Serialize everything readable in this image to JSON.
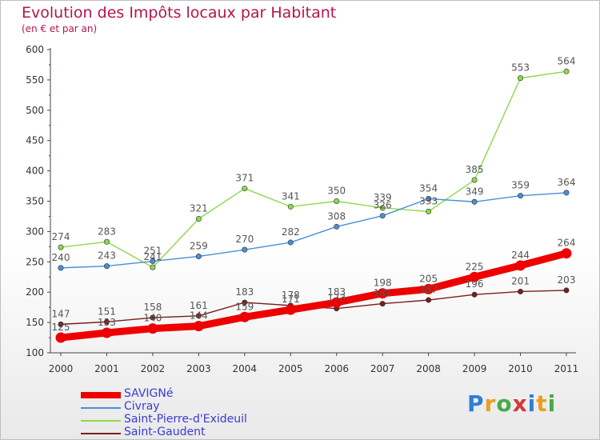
{
  "title": "Evolution des Impôts locaux par Habitant",
  "subtitle": "(en € et par an)",
  "logo": "Proxiti",
  "chart_data": {
    "type": "line",
    "x": [
      "2000",
      "2001",
      "2002",
      "2003",
      "2004",
      "2005",
      "2006",
      "2007",
      "2008",
      "2009",
      "2010",
      "2011"
    ],
    "ylim": [
      100,
      600
    ],
    "yticks": [
      100,
      150,
      200,
      250,
      300,
      350,
      400,
      450,
      500,
      550,
      600
    ],
    "grid": false,
    "legend_position": "bottom-left",
    "series": [
      {
        "name": "SAVIGNé",
        "color": "#ee0000",
        "values": [
          125,
          133,
          140,
          144,
          159,
          171,
          183,
          198,
          205,
          225,
          244,
          264
        ]
      },
      {
        "name": "Civray",
        "color": "#4a8fd4",
        "values": [
          240,
          243,
          251,
          259,
          270,
          282,
          308,
          326,
          354,
          349,
          359,
          364
        ]
      },
      {
        "name": "Saint-Pierre-d'Exideuil",
        "color": "#8ed84c",
        "values": [
          274,
          283,
          241,
          321,
          371,
          341,
          350,
          339,
          333,
          385,
          553,
          564
        ]
      },
      {
        "name": "Saint-Gaudent",
        "color": "#7a1e1e",
        "values": [
          147,
          151,
          158,
          161,
          183,
          178,
          173,
          181,
          187,
          196,
          201,
          203
        ]
      }
    ]
  }
}
